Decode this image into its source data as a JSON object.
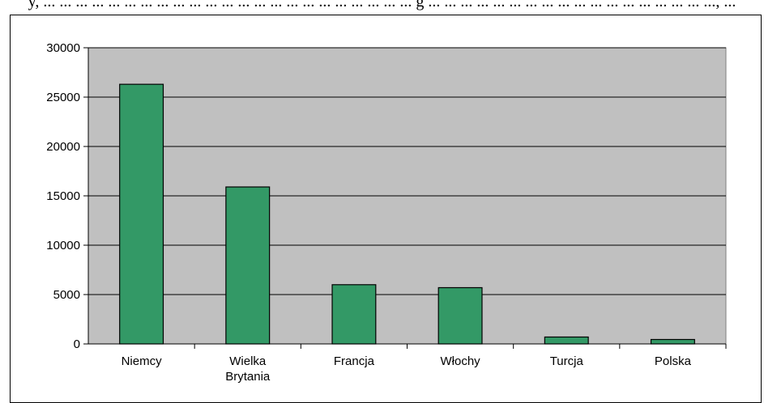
{
  "header": {
    "cut_title": "y, ... ... ... ... ... ... ... ... ... ... ... ... ... ... ... ... ... ... ... ... ... ... ... g ... ... ... ... ... ... ... ... ... ... ... ... ... ... ... ... ... ..., ..."
  },
  "colors": {
    "bar": "#339966",
    "plot_background": "#c0c0c0",
    "gridline": "#000000"
  },
  "chart_data": {
    "type": "bar",
    "categories": [
      [
        "Niemcy"
      ],
      [
        "Wielka",
        "Brytania"
      ],
      [
        "Francja"
      ],
      [
        "Włochy"
      ],
      [
        "Turcja"
      ],
      [
        "Polska"
      ]
    ],
    "values": [
      26300,
      15900,
      6000,
      5700,
      700,
      450
    ],
    "ylim": [
      0,
      30000
    ],
    "yticks": [
      "0",
      "5000",
      "10000",
      "15000",
      "20000",
      "25000",
      "30000"
    ],
    "grid": true,
    "legend": "none"
  }
}
